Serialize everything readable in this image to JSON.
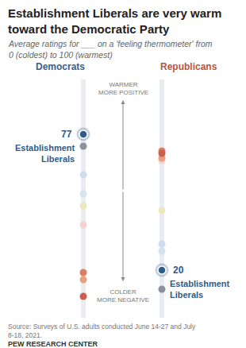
{
  "chart_data": {
    "type": "dot_strip",
    "title": "Establishment Liberals are very warm toward the Democratic Party",
    "subtitle": "Average ratings for ___ on a 'feeling thermometer' from 0 (coldest) to 100 (warmest)",
    "categories": [
      "Democrats",
      "Republicans"
    ],
    "annotations": {
      "top": [
        "WARMER",
        "MORE POSITIVE"
      ],
      "bottom": [
        "COLDER",
        "MORE NEGATIVE"
      ]
    },
    "source": "Source: Surveys of U.S. adults conducted June 14-27 and July 8-18, 2021.",
    "credit": "PEW RESEARCH CENTER",
    "ylim": [
      0,
      100
    ],
    "yticks": [],
    "tick_labels": false,
    "grid": false,
    "series": [
      {
        "color": "#cfdcee",
        "values": [
          60,
          31
        ]
      },
      {
        "color": "#d6e2f0",
        "values": [
          52,
          28
        ]
      },
      {
        "color": "#ebe8bd",
        "values": [
          47,
          45
        ]
      },
      {
        "color": "#f4d2d0",
        "values": [
          39,
          66
        ]
      },
      {
        "color": "#e9a07f",
        "values": [
          16,
          67
        ]
      },
      {
        "color": "#dc7c62",
        "values": [
          19,
          70
        ]
      },
      {
        "color": "#c9614f",
        "values": [
          9,
          69
        ]
      },
      {
        "color": "#8c919c",
        "values": [
          72,
          12
        ]
      },
      {
        "name": "Establishment Liberals",
        "color": "#2f5b88",
        "values": [
          77,
          20
        ],
        "data_labels": true
      }
    ]
  }
}
